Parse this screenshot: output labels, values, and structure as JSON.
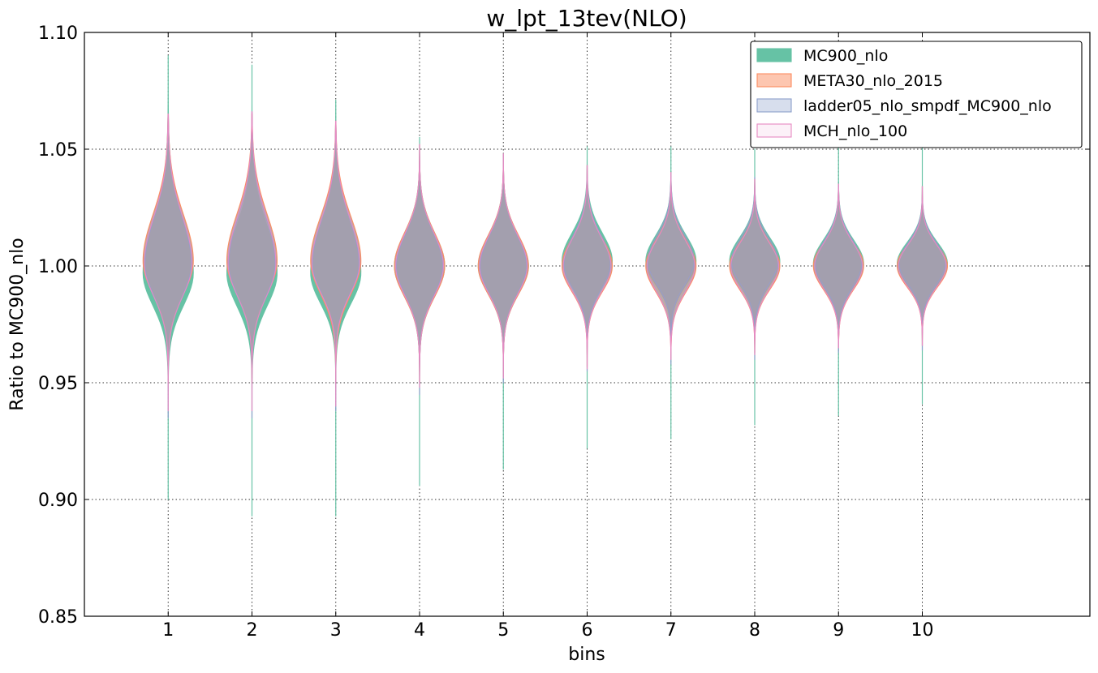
{
  "chart_data": {
    "type": "violin",
    "title": "w_lpt_13tev(NLO)",
    "xlabel": "bins",
    "ylabel": "Ratio to MC900_nlo",
    "categories": [
      "1",
      "2",
      "3",
      "4",
      "5",
      "6",
      "7",
      "8",
      "9",
      "10"
    ],
    "xlim": [
      0,
      12
    ],
    "ylim": [
      0.85,
      1.1
    ],
    "yticks": [
      "0.85",
      "0.90",
      "0.95",
      "1.00",
      "1.05",
      "1.10"
    ],
    "grid": true,
    "legend_position": "top-right",
    "series": [
      {
        "name": "MC900_nlo",
        "color": "#66c2a5",
        "fill_opacity": 1.0,
        "stroke": "#66c2a5",
        "width_scale": 1.0,
        "bins": [
          {
            "min": 0.9,
            "max": 1.09,
            "center": 0.997,
            "upper_spread": 0.022,
            "lower_spread": 0.014
          },
          {
            "min": 0.893,
            "max": 1.086,
            "center": 0.997,
            "upper_spread": 0.02,
            "lower_spread": 0.014
          },
          {
            "min": 0.893,
            "max": 1.071,
            "center": 0.997,
            "upper_spread": 0.02,
            "lower_spread": 0.013
          },
          {
            "min": 0.906,
            "max": 1.055,
            "center": 1.0,
            "upper_spread": 0.014,
            "lower_spread": 0.013
          },
          {
            "min": 0.913,
            "max": 1.048,
            "center": 1.0,
            "upper_spread": 0.013,
            "lower_spread": 0.012
          },
          {
            "min": 0.922,
            "max": 1.051,
            "center": 1.002,
            "upper_spread": 0.012,
            "lower_spread": 0.011
          },
          {
            "min": 0.926,
            "max": 1.051,
            "center": 1.002,
            "upper_spread": 0.011,
            "lower_spread": 0.01
          },
          {
            "min": 0.932,
            "max": 1.05,
            "center": 1.002,
            "upper_spread": 0.01,
            "lower_spread": 0.01
          },
          {
            "min": 0.936,
            "max": 1.054,
            "center": 1.001,
            "upper_spread": 0.01,
            "lower_spread": 0.01
          },
          {
            "min": 0.941,
            "max": 1.052,
            "center": 1.001,
            "upper_spread": 0.009,
            "lower_spread": 0.009
          }
        ]
      },
      {
        "name": "META30_nlo_2015",
        "color": "#fc8d62",
        "fill_opacity": 0.5,
        "stroke": "#fc8d62",
        "width_scale": 1.0,
        "bins": [
          {
            "min": 0.95,
            "max": 1.065,
            "center": 1.002,
            "upper_spread": 0.02,
            "lower_spread": 0.014
          },
          {
            "min": 0.95,
            "max": 1.065,
            "center": 1.002,
            "upper_spread": 0.02,
            "lower_spread": 0.014
          },
          {
            "min": 0.95,
            "max": 1.062,
            "center": 1.002,
            "upper_spread": 0.019,
            "lower_spread": 0.014
          },
          {
            "min": 0.95,
            "max": 1.052,
            "center": 1.0,
            "upper_spread": 0.014,
            "lower_spread": 0.013
          },
          {
            "min": 0.953,
            "max": 1.048,
            "center": 1.0,
            "upper_spread": 0.013,
            "lower_spread": 0.012
          },
          {
            "min": 0.957,
            "max": 1.043,
            "center": 1.0,
            "upper_spread": 0.012,
            "lower_spread": 0.011
          },
          {
            "min": 0.96,
            "max": 1.04,
            "center": 1.0,
            "upper_spread": 0.011,
            "lower_spread": 0.011
          },
          {
            "min": 0.963,
            "max": 1.037,
            "center": 1.0,
            "upper_spread": 0.01,
            "lower_spread": 0.01
          },
          {
            "min": 0.965,
            "max": 1.035,
            "center": 1.0,
            "upper_spread": 0.01,
            "lower_spread": 0.01
          },
          {
            "min": 0.966,
            "max": 1.034,
            "center": 1.0,
            "upper_spread": 0.009,
            "lower_spread": 0.009
          }
        ]
      },
      {
        "name": "ladder05_nlo_smpdf_MC900_nlo",
        "color": "#8da0cb",
        "fill_opacity": 0.35,
        "stroke": "#8da0cb",
        "width_scale": 0.92,
        "bins": [
          {
            "min": 0.935,
            "max": 1.065,
            "center": 1.001,
            "upper_spread": 0.02,
            "lower_spread": 0.014
          },
          {
            "min": 0.935,
            "max": 1.066,
            "center": 1.001,
            "upper_spread": 0.02,
            "lower_spread": 0.014
          },
          {
            "min": 0.938,
            "max": 1.062,
            "center": 1.001,
            "upper_spread": 0.019,
            "lower_spread": 0.013
          },
          {
            "min": 0.945,
            "max": 1.052,
            "center": 1.0,
            "upper_spread": 0.014,
            "lower_spread": 0.013
          },
          {
            "min": 0.95,
            "max": 1.048,
            "center": 1.0,
            "upper_spread": 0.013,
            "lower_spread": 0.012
          },
          {
            "min": 0.955,
            "max": 1.043,
            "center": 1.001,
            "upper_spread": 0.012,
            "lower_spread": 0.011
          },
          {
            "min": 0.958,
            "max": 1.04,
            "center": 1.002,
            "upper_spread": 0.011,
            "lower_spread": 0.01
          },
          {
            "min": 0.96,
            "max": 1.038,
            "center": 1.002,
            "upper_spread": 0.01,
            "lower_spread": 0.01
          },
          {
            "min": 0.963,
            "max": 1.035,
            "center": 1.001,
            "upper_spread": 0.01,
            "lower_spread": 0.01
          },
          {
            "min": 0.964,
            "max": 1.034,
            "center": 1.001,
            "upper_spread": 0.009,
            "lower_spread": 0.009
          }
        ]
      },
      {
        "name": "MCH_nlo_100",
        "color": "#e78ac3",
        "fill_opacity": 0.12,
        "stroke": "#e78ac3",
        "width_scale": 0.95,
        "bins": [
          {
            "min": 0.938,
            "max": 1.065,
            "center": 1.001,
            "upper_spread": 0.02,
            "lower_spread": 0.014
          },
          {
            "min": 0.938,
            "max": 1.066,
            "center": 1.001,
            "upper_spread": 0.02,
            "lower_spread": 0.014
          },
          {
            "min": 0.94,
            "max": 1.062,
            "center": 1.001,
            "upper_spread": 0.019,
            "lower_spread": 0.013
          },
          {
            "min": 0.948,
            "max": 1.052,
            "center": 1.0,
            "upper_spread": 0.014,
            "lower_spread": 0.013
          },
          {
            "min": 0.952,
            "max": 1.048,
            "center": 1.0,
            "upper_spread": 0.013,
            "lower_spread": 0.012
          },
          {
            "min": 0.956,
            "max": 1.043,
            "center": 1.0,
            "upper_spread": 0.012,
            "lower_spread": 0.011
          },
          {
            "min": 0.96,
            "max": 1.04,
            "center": 1.0,
            "upper_spread": 0.011,
            "lower_spread": 0.011
          },
          {
            "min": 0.962,
            "max": 1.037,
            "center": 1.0,
            "upper_spread": 0.01,
            "lower_spread": 0.01
          },
          {
            "min": 0.965,
            "max": 1.035,
            "center": 1.0,
            "upper_spread": 0.01,
            "lower_spread": 0.01
          },
          {
            "min": 0.966,
            "max": 1.034,
            "center": 1.0,
            "upper_spread": 0.009,
            "lower_spread": 0.009
          }
        ]
      }
    ],
    "overlap_color": "#ab9f98"
  }
}
